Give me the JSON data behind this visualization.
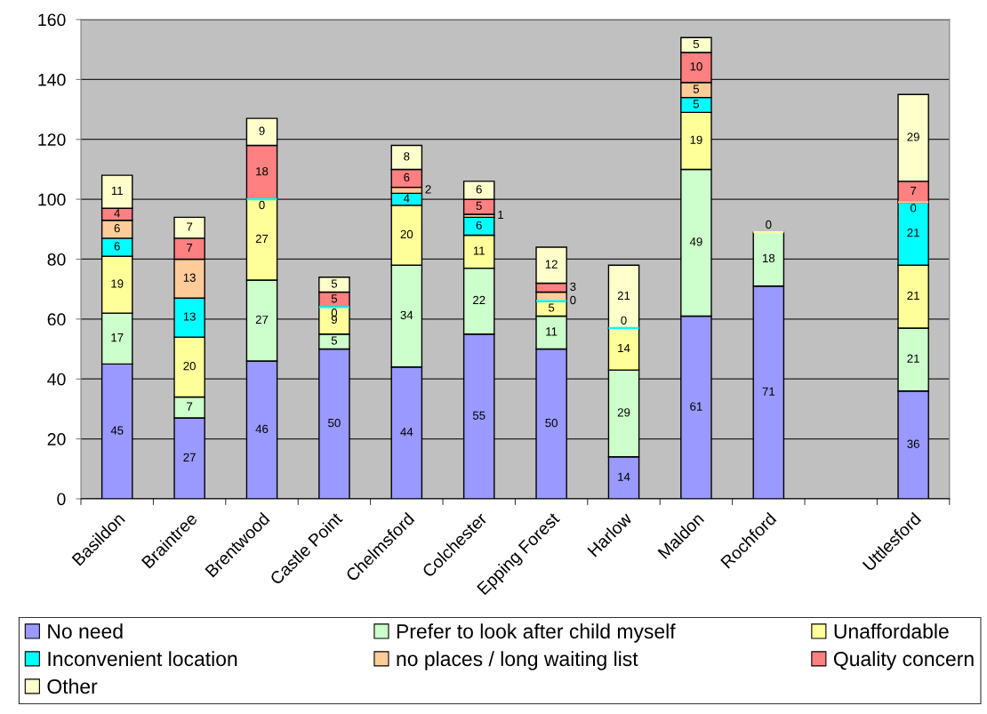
{
  "chart_data": {
    "type": "bar",
    "stacked": true,
    "categories": [
      "Basildon",
      "Braintree",
      "Brentwood",
      "Castle Point",
      "Chelmsford",
      "Colchester",
      "Epping Forest",
      "Harlow",
      "Maldon",
      "Rochford",
      null,
      "Uttlesford"
    ],
    "series": [
      {
        "name": "No need",
        "color": "#9999ff",
        "values": [
          45,
          27,
          46,
          50,
          44,
          55,
          50,
          14,
          61,
          71,
          null,
          36
        ],
        "value_labels": [
          "45",
          "27",
          "46",
          "50",
          "44",
          "55",
          "50",
          "14",
          "61",
          "71",
          null,
          "36"
        ]
      },
      {
        "name": "Prefer to look after child myself",
        "color": "#ccffcc",
        "values": [
          17,
          7,
          27,
          5,
          34,
          22,
          11,
          29,
          49,
          18,
          null,
          21
        ],
        "value_labels": [
          "17",
          "7",
          "27",
          "5",
          "34",
          "22",
          "11",
          "29",
          "49",
          "18",
          null,
          "21"
        ]
      },
      {
        "name": "Unaffordable",
        "color": "#ffff99",
        "values": [
          19,
          20,
          27,
          9,
          20,
          11,
          5,
          14,
          19,
          0,
          null,
          21
        ],
        "value_labels": [
          "19",
          "20",
          "27",
          "9",
          "20",
          "11",
          "5",
          "14",
          "19",
          "0",
          null,
          "21"
        ]
      },
      {
        "name": "Inconvenient location",
        "color": "#00ffff",
        "values": [
          6,
          13,
          0,
          0,
          4,
          6,
          0,
          0,
          5,
          0,
          null,
          21
        ],
        "value_labels": [
          "6",
          "13",
          "0",
          "0",
          "4",
          "6",
          "0",
          "0",
          "5",
          null,
          null,
          "21"
        ]
      },
      {
        "name": "no places / long waiting list",
        "color": "#ffcc99",
        "values": [
          6,
          13,
          0,
          0,
          2,
          1,
          3,
          0,
          5,
          0,
          null,
          0
        ],
        "value_labels": [
          "6",
          "13",
          null,
          null,
          "2",
          "1",
          null,
          null,
          "5",
          null,
          null,
          "0"
        ]
      },
      {
        "name": "Quality concern",
        "color": "#ff8080",
        "values": [
          4,
          7,
          18,
          5,
          6,
          5,
          3,
          0,
          10,
          0,
          null,
          7
        ],
        "value_labels": [
          "4",
          "7",
          "18",
          "5",
          "6",
          "5",
          "3",
          null,
          "10",
          null,
          null,
          "7"
        ]
      },
      {
        "name": "Other",
        "color": "#ffffcc",
        "values": [
          11,
          7,
          9,
          5,
          8,
          6,
          12,
          21,
          5,
          0,
          null,
          29
        ],
        "value_labels": [
          "11",
          "7",
          "9",
          "5",
          "8",
          "6",
          "12",
          "21",
          "5",
          null,
          null,
          "29"
        ]
      }
    ],
    "ylim": [
      0,
      160
    ],
    "yticks": [
      0,
      20,
      40,
      60,
      80,
      100,
      120,
      140,
      160
    ],
    "grid": "y",
    "legend": "bottom"
  }
}
